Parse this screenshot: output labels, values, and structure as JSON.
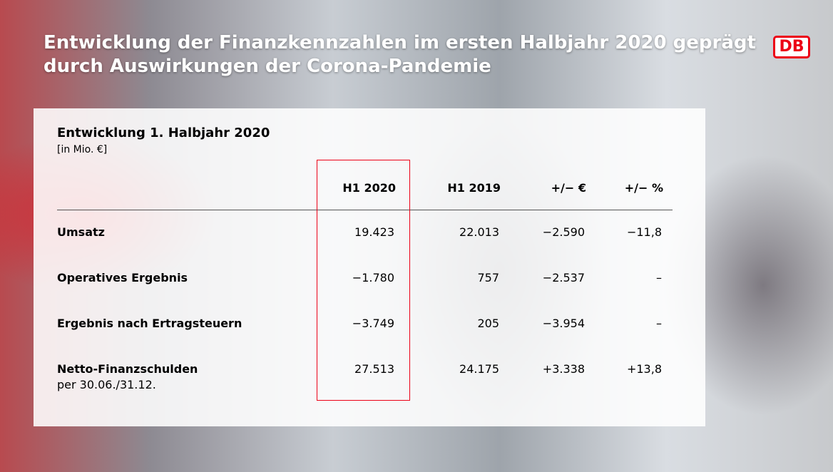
{
  "header": {
    "title_lines": [
      "Entwicklung der Finanzkennzahlen im ersten Halbjahr 2020 geprägt",
      "durch Auswirkungen der Corona-Pandemie"
    ],
    "logo": "DB"
  },
  "table": {
    "title": "Entwicklung 1. Halbjahr 2020",
    "unit": "[in Mio. €]",
    "columns": [
      "H1 2020",
      "H1 2019",
      "+/− €",
      "+/− %"
    ],
    "rows": [
      {
        "label": "Umsatz",
        "values": [
          "19.423",
          "22.013",
          "−2.590",
          "−11,8"
        ]
      },
      {
        "label": "Operatives Ergebnis",
        "values": [
          "−1.780",
          "757",
          "−2.537",
          "–"
        ]
      },
      {
        "label": "Ergebnis nach Ertragsteuern",
        "values": [
          "−3.749",
          "205",
          "−3.954",
          "–"
        ]
      },
      {
        "label": "Netto-Finanzschulden",
        "sublabel": "per 30.06./31.12.",
        "values": [
          "27.513",
          "24.175",
          "+3.338",
          "+13,8"
        ]
      }
    ]
  }
}
